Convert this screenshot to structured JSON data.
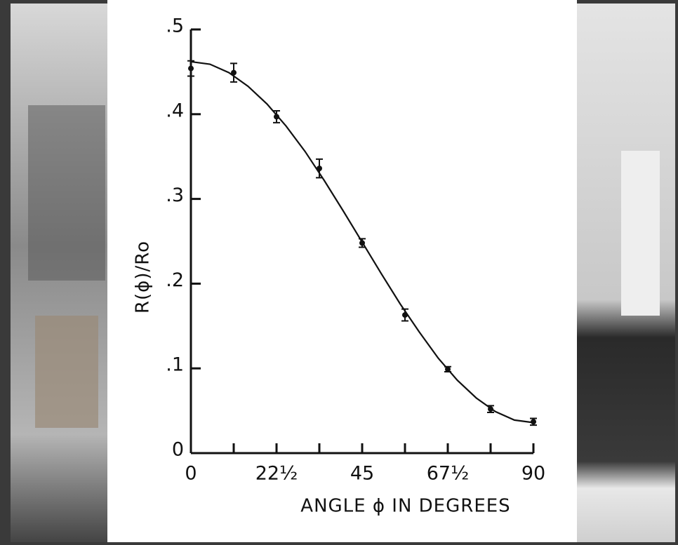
{
  "chart_data": {
    "type": "scatter",
    "x_label": "ANGLE ϕ IN DEGREES",
    "y_label": "R(ϕ)/Ro",
    "x": [
      0,
      11.25,
      22.5,
      33.75,
      45,
      56.25,
      67.5,
      78.75,
      90
    ],
    "values": [
      0.454,
      0.449,
      0.397,
      0.336,
      0.248,
      0.163,
      0.099,
      0.052,
      0.037
    ],
    "errors": [
      0.009,
      0.011,
      0.007,
      0.011,
      0.005,
      0.007,
      0.003,
      0.004,
      0.004
    ],
    "color": "#111111",
    "fit": {
      "x": [
        0,
        5,
        10,
        15,
        20,
        25,
        30,
        35,
        40,
        45,
        50,
        55,
        60,
        65,
        70,
        75,
        80,
        85,
        90
      ],
      "values": [
        0.462,
        0.459,
        0.449,
        0.433,
        0.412,
        0.386,
        0.356,
        0.322,
        0.286,
        0.249,
        0.212,
        0.176,
        0.143,
        0.112,
        0.086,
        0.065,
        0.049,
        0.039,
        0.036
      ]
    },
    "xlim": [
      0,
      90
    ],
    "ylim": [
      0,
      0.5
    ],
    "xticks": [
      0,
      {
        "value": 22.5,
        "label": "22½"
      },
      45,
      {
        "value": 67.5,
        "label": "67½"
      },
      90
    ],
    "xminor_ticks": [
      11.25,
      33.75,
      56.25,
      78.75
    ],
    "yticks": [
      0,
      {
        "value": 0.1,
        "label": ".1"
      },
      {
        "value": 0.2,
        "label": ".2"
      },
      {
        "value": 0.3,
        "label": ".3"
      },
      {
        "value": 0.4,
        "label": ".4"
      },
      {
        "value": 0.5,
        "label": ".5"
      }
    ]
  }
}
